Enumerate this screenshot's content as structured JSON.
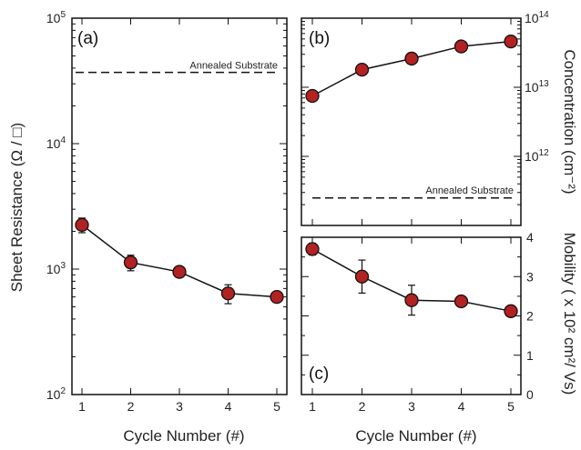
{
  "chart_data": [
    {
      "panel": "(a)",
      "type": "scatter",
      "x": [
        1,
        2,
        3,
        4,
        5
      ],
      "y": [
        2250,
        1130,
        950,
        640,
        600
      ],
      "yerr": [
        300,
        160,
        0,
        110,
        0
      ],
      "xlabel": "Cycle Number (#)",
      "ylabel": "Sheet Resistance (Ω / □)",
      "ylim": [
        100,
        100000
      ],
      "yscale": "log",
      "xticks": [
        "1",
        "2",
        "3",
        "4",
        "5"
      ],
      "yticks": [
        {
          "v": 100,
          "base": "10",
          "exp": "2"
        },
        {
          "v": 1000,
          "base": "10",
          "exp": "3"
        },
        {
          "v": 10000,
          "base": "10",
          "exp": "4"
        },
        {
          "v": 100000,
          "base": "10",
          "exp": "5"
        }
      ],
      "reference": {
        "value": 37000,
        "label": "Annealed Substrate"
      },
      "marker_color": "#b22222"
    },
    {
      "panel": "(b)",
      "type": "scatter",
      "x": [
        1,
        2,
        3,
        4,
        5
      ],
      "y": [
        7500000000000.0,
        18000000000000.0,
        26000000000000.0,
        39000000000000.0,
        46000000000000.0
      ],
      "xlabel": "",
      "ylabel": "Concentration (cm⁻²)",
      "ylim": [
        100000000000.0,
        100000000000000.0
      ],
      "yscale": "log",
      "yticks": [
        {
          "v": 1000000000000.0,
          "base": "10",
          "exp": "12"
        },
        {
          "v": 10000000000000.0,
          "base": "10",
          "exp": "13"
        },
        {
          "v": 100000000000000.0,
          "base": "10",
          "exp": "14"
        }
      ],
      "reference": {
        "value": 250000000000.0,
        "label": "Annealed Substrate"
      },
      "marker_color": "#b22222"
    },
    {
      "panel": "(c)",
      "type": "scatter",
      "x": [
        1,
        2,
        3,
        4,
        5
      ],
      "y": [
        3.7,
        3.0,
        2.4,
        2.37,
        2.12
      ],
      "yerr": [
        0.15,
        0.42,
        0.38,
        0,
        0
      ],
      "xlabel": "Cycle Number (#)",
      "ylabel": "Mobility ( x 10² cm²/ Vs)",
      "ylim": [
        0,
        4
      ],
      "xticks": [
        "1",
        "2",
        "3",
        "4",
        "5"
      ],
      "yticks": [
        "0",
        "1",
        "2",
        "3",
        "4"
      ],
      "marker_color": "#b22222"
    }
  ]
}
